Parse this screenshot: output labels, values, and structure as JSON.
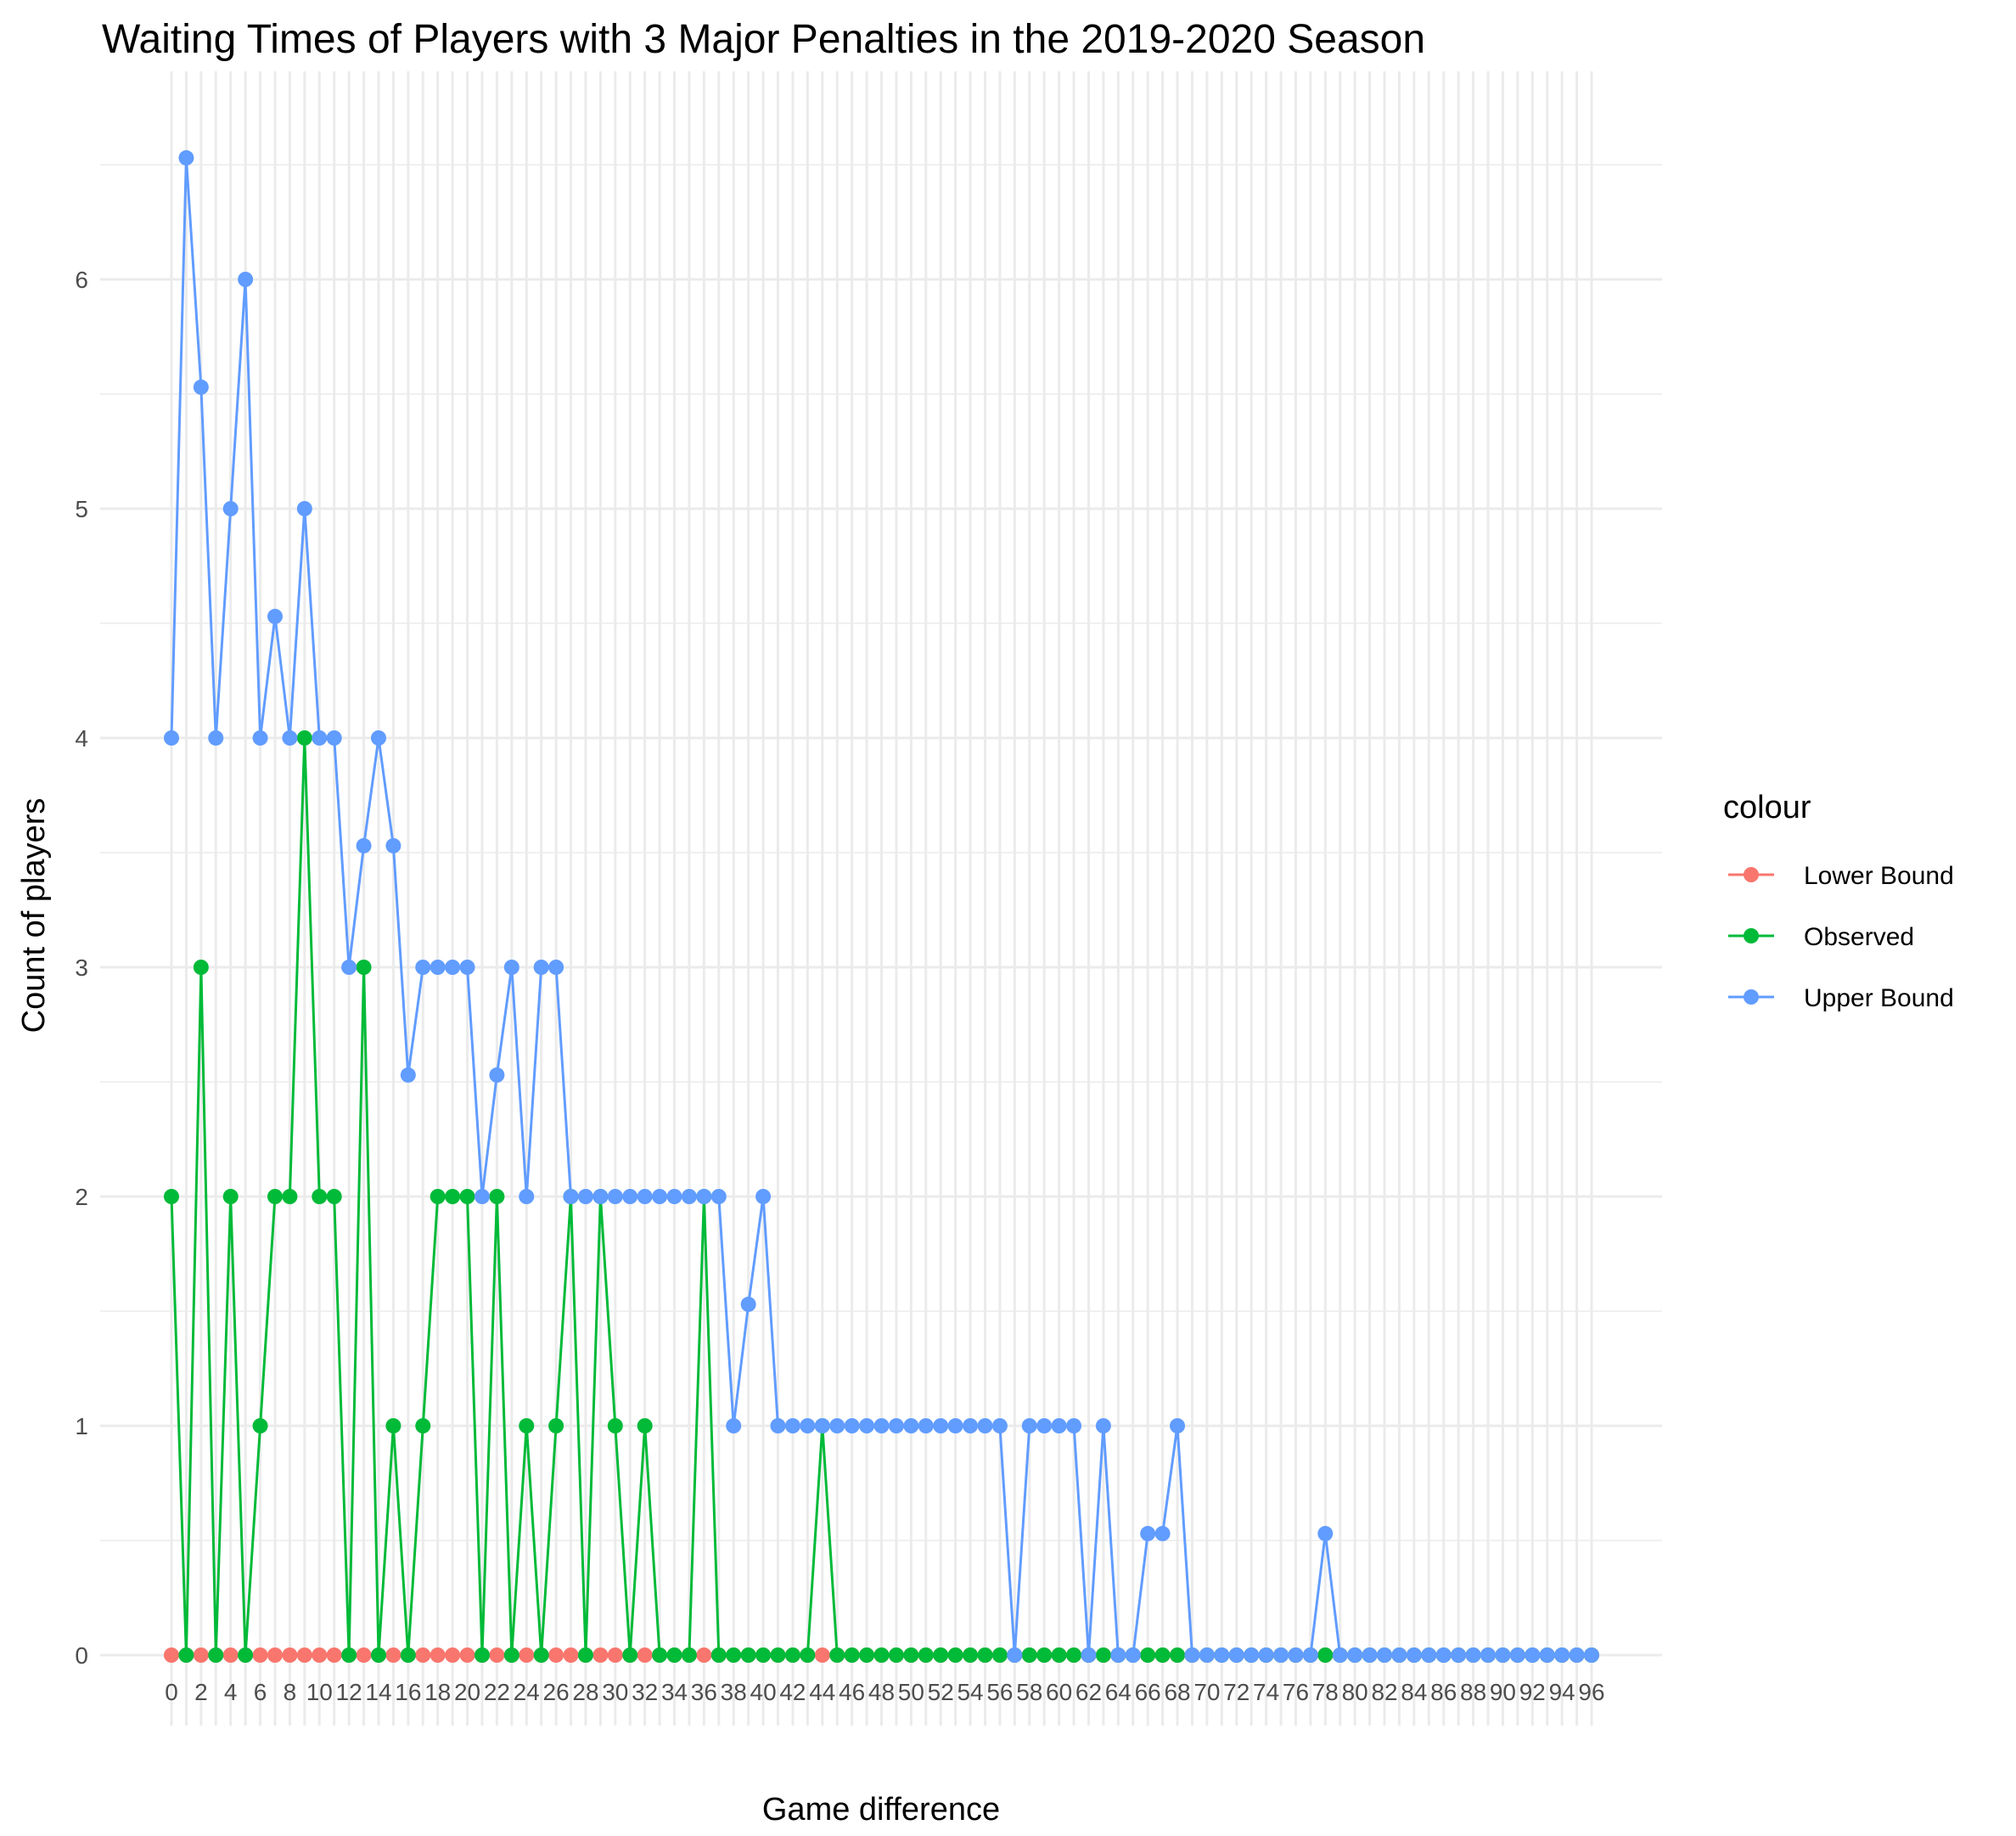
{
  "chart_data": {
    "type": "line",
    "title": "Waiting Times of Players with 3 Major Penalties in the 2019-2020 Season",
    "xlabel": "Game difference",
    "ylabel": "Count of players",
    "xlim": [
      0,
      96
    ],
    "ylim": [
      0,
      6.52
    ],
    "x_ticks": [
      0,
      2,
      4,
      6,
      8,
      10,
      12,
      14,
      16,
      18,
      20,
      22,
      24,
      26,
      28,
      30,
      32,
      34,
      36,
      38,
      40,
      42,
      44,
      46,
      48,
      50,
      52,
      54,
      56,
      58,
      60,
      62,
      64,
      66,
      68,
      70,
      72,
      74,
      76,
      78,
      80,
      82,
      84,
      86,
      88,
      90,
      92,
      94,
      96
    ],
    "y_ticks": [
      0,
      1,
      2,
      3,
      4,
      5,
      6
    ],
    "grid": true,
    "legend": {
      "title": "colour",
      "position": "right"
    },
    "x": [
      0,
      1,
      2,
      3,
      4,
      5,
      6,
      7,
      8,
      9,
      10,
      11,
      12,
      13,
      14,
      15,
      16,
      17,
      18,
      19,
      20,
      21,
      22,
      23,
      24,
      25,
      26,
      27,
      28,
      29,
      30,
      31,
      32,
      33,
      34,
      35,
      36,
      37,
      38,
      39,
      40,
      41,
      42,
      43,
      44,
      45,
      46,
      47,
      48,
      49,
      50,
      51,
      52,
      53,
      54,
      55,
      56,
      57,
      58,
      59,
      60,
      61,
      62,
      63,
      64,
      65,
      66,
      67,
      68,
      69,
      70,
      71,
      72,
      73,
      74,
      75,
      76,
      77,
      78,
      79,
      80,
      81,
      82,
      83,
      84,
      85,
      86,
      87,
      88,
      89,
      90,
      91,
      92,
      93,
      94,
      95,
      96
    ],
    "series": [
      {
        "name": "Lower Bound",
        "color": "#F8766D",
        "values": [
          0,
          0,
          0,
          0,
          0,
          0,
          0,
          0,
          0,
          0,
          0,
          0,
          0,
          0,
          0,
          0,
          0,
          0,
          0,
          0,
          0,
          0,
          0,
          0,
          0,
          0,
          0,
          0,
          0,
          0,
          0,
          0,
          0,
          0,
          0,
          0,
          0,
          0,
          0,
          0,
          0,
          0,
          0,
          0,
          0,
          0,
          0,
          0,
          0,
          0,
          0,
          0,
          0,
          0,
          0,
          0,
          0,
          0,
          0,
          0,
          0,
          0,
          0,
          0,
          0,
          0,
          0,
          0,
          0,
          0,
          0,
          0,
          0,
          0,
          0,
          0,
          0,
          0,
          0,
          0,
          0,
          0,
          0,
          0,
          0,
          0,
          0,
          0,
          0,
          0,
          0,
          0,
          0,
          0,
          0,
          0,
          0
        ]
      },
      {
        "name": "Observed",
        "color": "#00BA38",
        "values": [
          2,
          0,
          3,
          0,
          2,
          0,
          1,
          2,
          2,
          4,
          2,
          2,
          0,
          3,
          0,
          1,
          0,
          1,
          2,
          2,
          2,
          0,
          2,
          0,
          1,
          0,
          1,
          2,
          0,
          2,
          1,
          0,
          1,
          0,
          0,
          0,
          2,
          0,
          0,
          0,
          0,
          0,
          0,
          0,
          1,
          0,
          0,
          0,
          0,
          0,
          0,
          0,
          0,
          0,
          0,
          0,
          0,
          0,
          0,
          0,
          0,
          0,
          0,
          0,
          0,
          0,
          0,
          0,
          0,
          0,
          0,
          0,
          0,
          0,
          0,
          0,
          0,
          0,
          0,
          0,
          0,
          0,
          0,
          0,
          0,
          0,
          0,
          0,
          0,
          0,
          0,
          0,
          0,
          0,
          0,
          0,
          0
        ]
      },
      {
        "name": "Upper Bound",
        "color": "#619CFF",
        "values": [
          4,
          6.53,
          5.53,
          4,
          5,
          6,
          4,
          4.53,
          4,
          5,
          4,
          4,
          3,
          3.53,
          4,
          3.53,
          2.53,
          3,
          3,
          3,
          3,
          2,
          2.53,
          3,
          2,
          3,
          3,
          2,
          2,
          2,
          2,
          2,
          2,
          2,
          2,
          2,
          2,
          2,
          1,
          1.53,
          2,
          1,
          1,
          1,
          1,
          1,
          1,
          1,
          1,
          1,
          1,
          1,
          1,
          1,
          1,
          1,
          1,
          0,
          1,
          1,
          1,
          1,
          0,
          1,
          0,
          0,
          0.53,
          0.53,
          1,
          0,
          0,
          0,
          0,
          0,
          0,
          0,
          0,
          0,
          0.53,
          0,
          0,
          0,
          0,
          0,
          0,
          0,
          0,
          0,
          0,
          0,
          0,
          0,
          0,
          0,
          0,
          0,
          0
        ]
      }
    ]
  }
}
